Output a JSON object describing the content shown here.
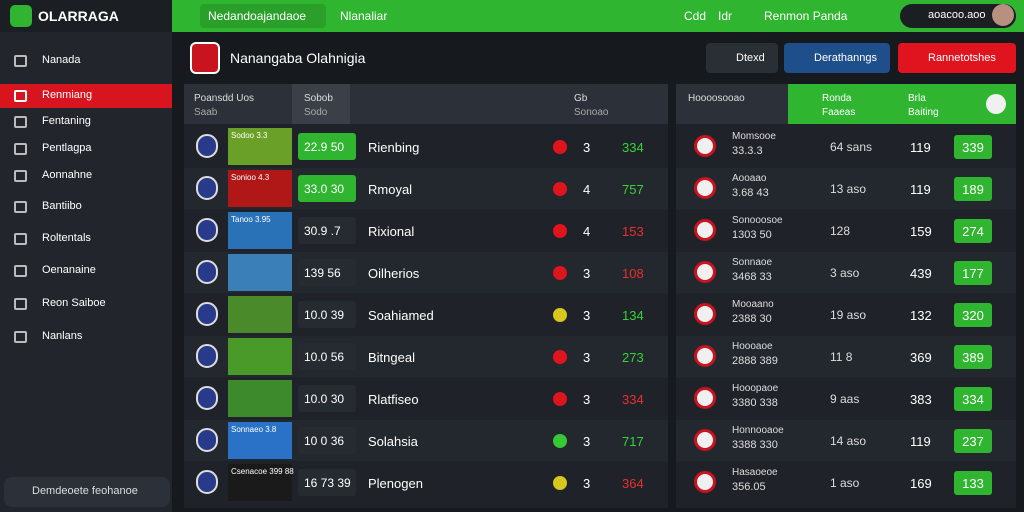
{
  "topbar": {
    "brand": "OLARRAGA",
    "search": "Nedandoajandaoe",
    "menu": "Nlanaliar",
    "links": [
      "Cdd",
      "Idr",
      "Renmon Panda"
    ],
    "account": "aoacoo.aoo"
  },
  "sidebar": {
    "items": [
      {
        "label": "Nanada",
        "active": false
      },
      {
        "label": "Renmiang",
        "active": true
      },
      {
        "label": "Fentaning",
        "active": false
      },
      {
        "label": "Pentlagpa",
        "active": false
      },
      {
        "label": "Aonnahne",
        "active": false
      },
      {
        "label": "Bantiibo",
        "active": false
      },
      {
        "label": "Roltentals",
        "active": false
      },
      {
        "label": "Oenanaine",
        "active": false
      },
      {
        "label": "Reon Saiboe",
        "active": false
      },
      {
        "label": "Nanlans",
        "active": false
      }
    ],
    "search": "Demdeoete feohanoe"
  },
  "header": {
    "title": "Nanangaba Olahnigia",
    "buttons": [
      {
        "label": "Dtexd",
        "color": "#2a2e35"
      },
      {
        "label": "Derathanngs",
        "color": "#1e4f8a"
      },
      {
        "label": "Rannetotshes",
        "color": "#e0141e"
      }
    ]
  },
  "left_table": {
    "columns": [
      {
        "title": "Poansdd Uos",
        "sub": "Saab"
      },
      {
        "title": "Sobob",
        "sub": "Sodo"
      },
      {
        "title": "Gb",
        "sub": "Sonoao"
      }
    ],
    "rows": [
      {
        "thumb": "Sodoo 3.3",
        "odds": "22.9 50",
        "odds_highlight": true,
        "name": "Rienbing",
        "dot_color": "#e0141e",
        "count": "3",
        "value": "334",
        "value_color": "#37d237"
      },
      {
        "thumb": "Sonioo 4.3",
        "odds": "33.0 30",
        "odds_highlight": true,
        "name": "Rmoyal",
        "dot_color": "#e0141e",
        "count": "4",
        "value": "757",
        "value_color": "#37d237"
      },
      {
        "thumb": "Tanoo 3.95",
        "odds": "30.9 .7",
        "odds_highlight": false,
        "name": "Rixional",
        "dot_color": "#e0141e",
        "count": "4",
        "value": "153",
        "value_color": "#e83030"
      },
      {
        "odds": "139 56",
        "odds_highlight": false,
        "name": "Oilherios",
        "dot_color": "#e0141e",
        "count": "3",
        "value": "108",
        "value_color": "#e83030"
      },
      {
        "odds": "10.0 39",
        "odds_highlight": false,
        "name": "Soahiamed",
        "dot_color": "#d8c81e",
        "count": "3",
        "value": "134",
        "value_color": "#37d237"
      },
      {
        "odds": "10.0 56",
        "odds_highlight": false,
        "name": "Bitngeal",
        "dot_color": "#e0141e",
        "count": "3",
        "value": "273",
        "value_color": "#37d237"
      },
      {
        "odds": "10.0 30",
        "odds_highlight": false,
        "name": "Rlatfiseo",
        "dot_color": "#e0141e",
        "count": "3",
        "value": "334",
        "value_color": "#e83030"
      },
      {
        "thumb": "Sonnaeo 3.8",
        "odds": "10 0 36",
        "odds_highlight": false,
        "name": "Solahsia",
        "dot_color": "#37c837",
        "count": "3",
        "value": "717",
        "value_color": "#37d237"
      },
      {
        "thumb": "Csenacoe 399 88",
        "odds": "16 73 39",
        "odds_highlight": false,
        "name": "Plenogen",
        "dot_color": "#d8c81e",
        "count": "3",
        "value": "364",
        "value_color": "#e83030"
      }
    ]
  },
  "right_table": {
    "title": "Hoooosooao",
    "columns": [
      {
        "title": "Ronda",
        "sub": "Faaeas"
      },
      {
        "title": "Brla",
        "sub": "Baiting"
      }
    ],
    "rows": [
      {
        "name": "Momsooe",
        "sub": "33.3.3",
        "stat": "64 sans",
        "count": "119",
        "value": "339"
      },
      {
        "name": "Aooaao",
        "sub": "3.68 43",
        "stat": "13 aso",
        "count": "119",
        "value": "189"
      },
      {
        "name": "Sonooosoe",
        "sub": "1303 50",
        "stat": "128",
        "count": "159",
        "value": "274"
      },
      {
        "name": "Sonnaoe",
        "sub": "3468 33",
        "stat": "3 aso",
        "count": "439",
        "value": "177"
      },
      {
        "name": "Mooaano",
        "sub": "2388 30",
        "stat": "19 aso",
        "count": "132",
        "value": "320"
      },
      {
        "name": "Hoooaoe",
        "sub": "2888 389",
        "stat": "11 8",
        "count": "369",
        "value": "389"
      },
      {
        "name": "Hooopaoe",
        "sub": "3380 338",
        "stat": "9 aas",
        "count": "383",
        "value": "334"
      },
      {
        "name": "Honnooaoe",
        "sub": "3388 330",
        "stat": "14 aso",
        "count": "119",
        "value": "237"
      },
      {
        "name": "Hasaoeoe",
        "sub": "356.05",
        "stat": "1 aso",
        "count": "169",
        "value": "133"
      }
    ]
  }
}
